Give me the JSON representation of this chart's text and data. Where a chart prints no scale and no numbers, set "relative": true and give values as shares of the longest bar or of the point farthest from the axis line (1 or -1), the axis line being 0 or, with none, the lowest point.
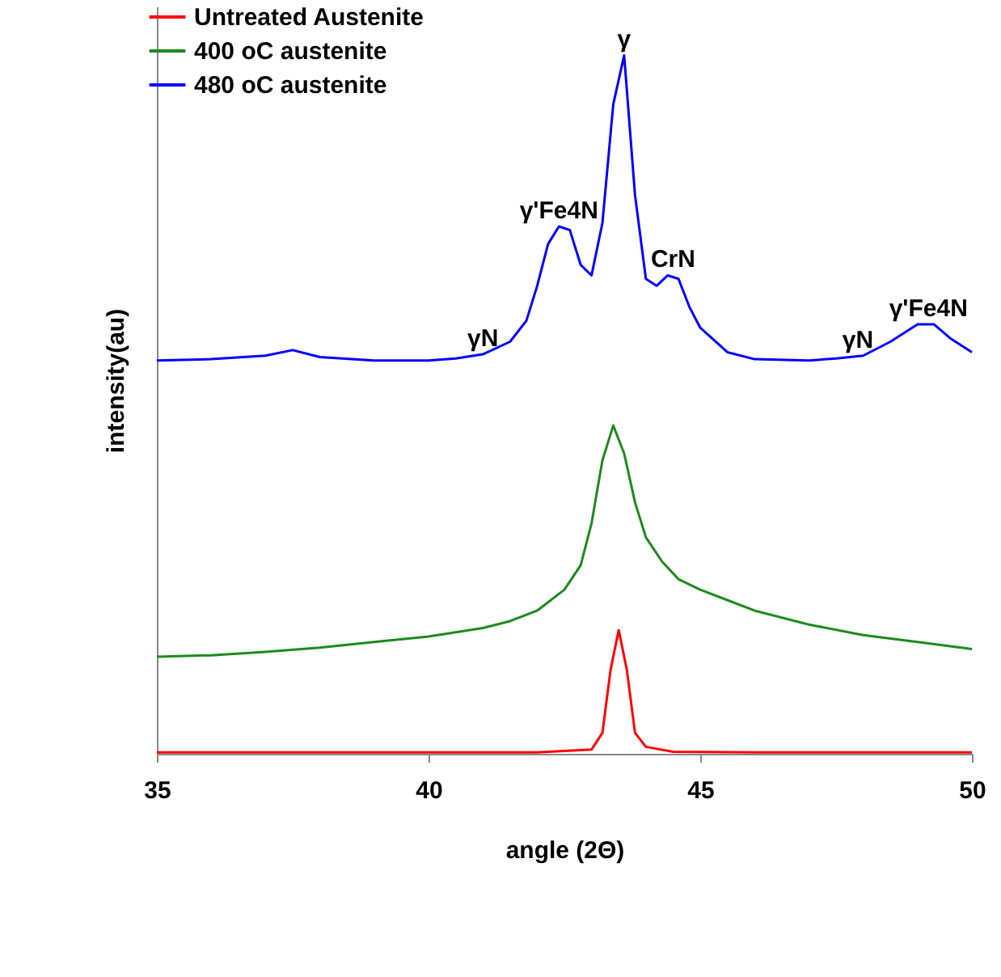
{
  "chart_data": {
    "type": "line",
    "relative": true,
    "xlabel": "angle (2Θ)",
    "ylabel": "intensity(au)",
    "xlim": [
      35,
      50
    ],
    "xticks": [
      35,
      40,
      45,
      50
    ],
    "grid": false,
    "legend": "top left",
    "marker": "none",
    "line_style": "solid",
    "annotations": [
      {
        "text": "γN",
        "x": 41.0,
        "y": 0.572
      },
      {
        "text": "γ'Fe4N",
        "x": 42.4,
        "y": 0.755
      },
      {
        "text": "γ",
        "x": 43.6,
        "y": 1.0
      },
      {
        "text": "CrN",
        "x": 44.5,
        "y": 0.685
      },
      {
        "text": "γN",
        "x": 47.9,
        "y": 0.57
      },
      {
        "text": "γ'Fe4N",
        "x": 49.2,
        "y": 0.615
      }
    ],
    "series": [
      {
        "name": "Untreated Austenite",
        "color": "#ff0000",
        "x": [
          35,
          38,
          40,
          42,
          43,
          43.2,
          43.35,
          43.5,
          43.65,
          43.8,
          44,
          44.5,
          46,
          48,
          50
        ],
        "values": [
          0.002,
          0.002,
          0.002,
          0.002,
          0.006,
          0.03,
          0.12,
          0.177,
          0.12,
          0.03,
          0.01,
          0.003,
          0.002,
          0.002,
          0.002
        ]
      },
      {
        "name": "400 oC austenite",
        "color": "#1e8a1e",
        "x": [
          35,
          36,
          37,
          38,
          39,
          40,
          41,
          41.5,
          42,
          42.5,
          42.8,
          43,
          43.2,
          43.4,
          43.6,
          43.8,
          44,
          44.3,
          44.6,
          45,
          45.5,
          46,
          47,
          48,
          49,
          50
        ],
        "values": [
          0.139,
          0.141,
          0.146,
          0.152,
          0.16,
          0.168,
          0.18,
          0.19,
          0.205,
          0.235,
          0.27,
          0.33,
          0.42,
          0.47,
          0.43,
          0.36,
          0.31,
          0.275,
          0.25,
          0.235,
          0.22,
          0.205,
          0.185,
          0.17,
          0.16,
          0.15
        ]
      },
      {
        "name": "480 oC austenite",
        "color": "#0000ff",
        "x": [
          35,
          36,
          37,
          37.5,
          38,
          39,
          40,
          40.5,
          41,
          41.5,
          41.8,
          42,
          42.2,
          42.4,
          42.6,
          42.8,
          43,
          43.2,
          43.4,
          43.6,
          43.8,
          44,
          44.2,
          44.4,
          44.6,
          44.8,
          45,
          45.5,
          46,
          47,
          47.5,
          48,
          48.5,
          49,
          49.3,
          49.6,
          50
        ],
        "values": [
          0.563,
          0.565,
          0.57,
          0.578,
          0.568,
          0.563,
          0.563,
          0.566,
          0.572,
          0.59,
          0.62,
          0.67,
          0.73,
          0.755,
          0.75,
          0.7,
          0.685,
          0.76,
          0.93,
          1.0,
          0.8,
          0.68,
          0.67,
          0.685,
          0.68,
          0.64,
          0.61,
          0.575,
          0.565,
          0.563,
          0.566,
          0.57,
          0.59,
          0.615,
          0.615,
          0.595,
          0.575
        ]
      }
    ]
  }
}
